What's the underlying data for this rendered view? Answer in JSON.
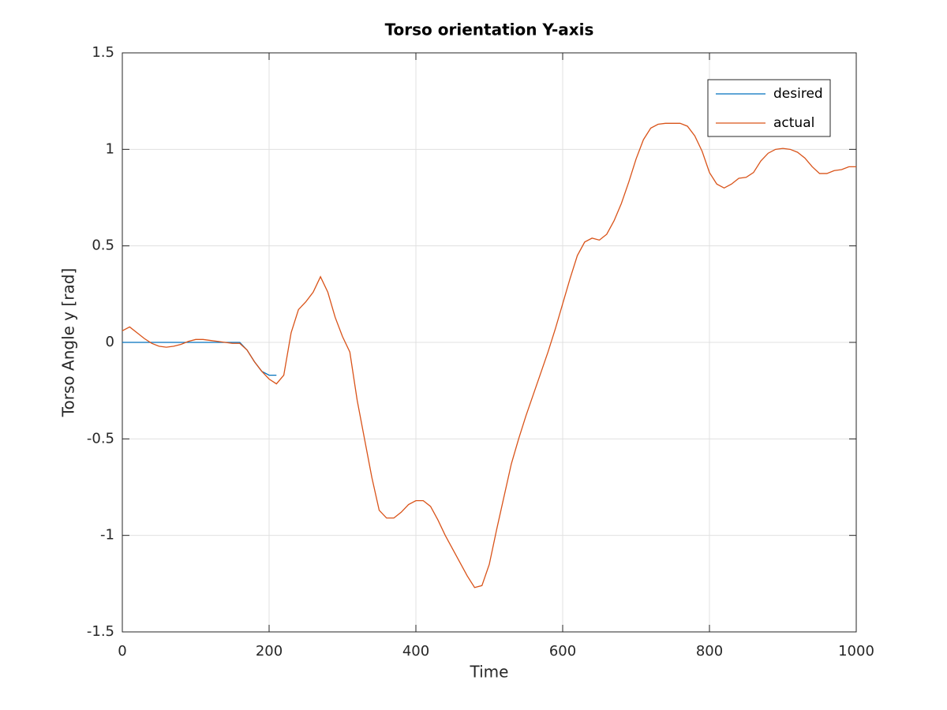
{
  "chart_data": {
    "type": "line",
    "title": "Torso orientation Y-axis",
    "x_label": "Time",
    "y_label": "Torso Angle y [rad]",
    "x": [
      0,
      10,
      20,
      30,
      40,
      50,
      60,
      70,
      80,
      90,
      100,
      110,
      120,
      130,
      140,
      150,
      160,
      170,
      180,
      190,
      200,
      210,
      220,
      230,
      240,
      250,
      260,
      270,
      280,
      290,
      300,
      310,
      320,
      330,
      340,
      350,
      360,
      370,
      380,
      390,
      400,
      410,
      420,
      430,
      440,
      450,
      460,
      470,
      480,
      490,
      500,
      510,
      520,
      530,
      540,
      550,
      560,
      570,
      580,
      590,
      600,
      610,
      620,
      630,
      640,
      650,
      660,
      670,
      680,
      690,
      700,
      710,
      720,
      730,
      740,
      750,
      760,
      770,
      780,
      790,
      800,
      810,
      820,
      830,
      840,
      850,
      860,
      870,
      880,
      890,
      900,
      910,
      920,
      930,
      940,
      950,
      960,
      970,
      980,
      990,
      1000
    ],
    "series": [
      {
        "name": "desired",
        "color": "#0072bd",
        "values": [
          0,
          0,
          0,
          0,
          0,
          0,
          0,
          0,
          0,
          0,
          0,
          0,
          0,
          0,
          0,
          0,
          0,
          -0.04,
          -0.1,
          -0.15,
          -0.17,
          -0.17,
          null,
          null,
          null,
          null,
          null,
          null,
          null,
          null,
          null,
          null,
          null,
          null,
          null,
          null,
          null,
          null,
          null,
          null,
          null,
          null,
          null,
          null,
          null,
          null,
          null,
          null,
          null,
          null,
          null,
          null,
          null,
          null,
          null,
          null,
          null,
          null,
          null,
          null,
          null,
          null,
          null,
          null,
          null,
          null,
          null,
          null,
          null,
          null,
          null,
          null,
          null,
          null,
          null,
          null,
          null,
          null,
          null,
          null,
          null,
          null,
          null,
          null,
          null,
          null,
          null,
          null,
          null,
          null,
          null,
          null,
          null,
          null,
          null,
          null,
          null,
          null,
          null,
          null,
          null
        ]
      },
      {
        "name": "actual",
        "color": "#d95319",
        "values": [
          0.06,
          0.08,
          0.05,
          0.02,
          -0.005,
          -0.02,
          -0.025,
          -0.02,
          -0.01,
          0.005,
          0.015,
          0.015,
          0.01,
          0.005,
          0,
          -0.005,
          -0.005,
          -0.04,
          -0.1,
          -0.15,
          -0.19,
          -0.215,
          -0.17,
          0.05,
          0.17,
          0.21,
          0.26,
          0.34,
          0.26,
          0.13,
          0.03,
          -0.05,
          -0.3,
          -0.5,
          -0.7,
          -0.87,
          -0.91,
          -0.91,
          -0.88,
          -0.84,
          -0.82,
          -0.82,
          -0.85,
          -0.92,
          -1.0,
          -1.07,
          -1.14,
          -1.21,
          -1.27,
          -1.26,
          -1.15,
          -0.97,
          -0.8,
          -0.63,
          -0.5,
          -0.38,
          -0.27,
          -0.16,
          -0.05,
          0.07,
          0.2,
          0.33,
          0.45,
          0.52,
          0.54,
          0.53,
          0.56,
          0.63,
          0.72,
          0.83,
          0.95,
          1.05,
          1.11,
          1.13,
          1.135,
          1.135,
          1.135,
          1.12,
          1.07,
          0.99,
          0.88,
          0.82,
          0.8,
          0.82,
          0.85,
          0.855,
          0.88,
          0.94,
          0.98,
          1.0,
          1.005,
          1.0,
          0.985,
          0.955,
          0.91,
          0.875,
          0.875,
          0.89,
          0.895,
          0.91,
          0.91
        ]
      }
    ],
    "xlim": [
      0,
      1000
    ],
    "xticks": [
      0,
      200,
      400,
      600,
      800,
      1000
    ],
    "ylim": [
      -1.5,
      1.5
    ],
    "yticks": [
      -1.5,
      -1,
      -0.5,
      0,
      0.5,
      1,
      1.5
    ],
    "grid": true,
    "legend": "upper right"
  }
}
